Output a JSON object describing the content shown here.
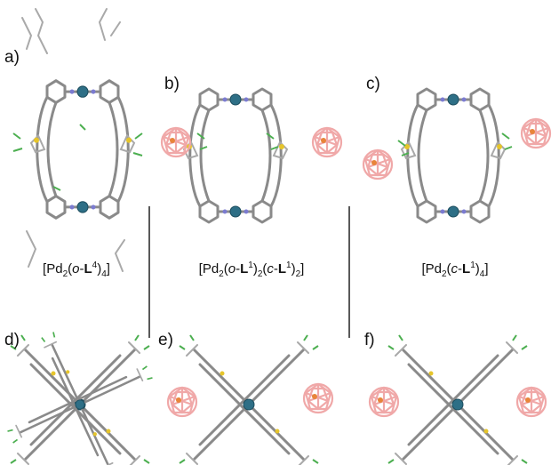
{
  "panels": {
    "labels": [
      "a)",
      "b)",
      "c)",
      "d)",
      "e)",
      "f)"
    ]
  },
  "captions": [
    {
      "parts": [
        "[Pd",
        "2",
        "(",
        "o",
        "-",
        "L",
        "4",
        ")",
        "4",
        "]"
      ]
    },
    {
      "parts": [
        "[Pd",
        "2",
        "(",
        "o",
        "-",
        "L",
        "1",
        ")",
        "2",
        "(",
        "c",
        "-",
        "L",
        "1",
        ")",
        "2",
        "]"
      ]
    },
    {
      "parts": [
        "[Pd",
        "2",
        "(",
        "c",
        "-",
        "L",
        "1",
        ")",
        "4",
        "]"
      ]
    }
  ]
}
